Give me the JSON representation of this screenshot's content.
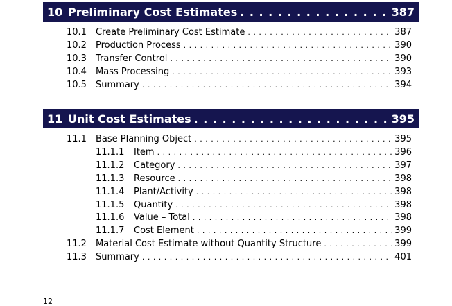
{
  "chapters": [
    {
      "number": "10",
      "title": "Preliminary Cost Estimates",
      "page": "387",
      "entries": [
        {
          "number": "10.1",
          "title": "Create Preliminary Cost Estimate",
          "page": "387"
        },
        {
          "number": "10.2",
          "title": "Production Process",
          "page": "390"
        },
        {
          "number": "10.3",
          "title": "Transfer Control",
          "page": "390"
        },
        {
          "number": "10.4",
          "title": "Mass Processing",
          "page": "393"
        },
        {
          "number": "10.5",
          "title": "Summary",
          "page": "394"
        }
      ]
    },
    {
      "number": "11",
      "title": "Unit Cost Estimates",
      "page": "395",
      "entries": [
        {
          "number": "11.1",
          "title": "Base Planning Object",
          "page": "395"
        },
        {
          "number": "11.1.1",
          "title": "Item",
          "page": "396"
        },
        {
          "number": "11.1.2",
          "title": "Category",
          "page": "397"
        },
        {
          "number": "11.1.3",
          "title": "Resource",
          "page": "398"
        },
        {
          "number": "11.1.4",
          "title": "Plant/Activity",
          "page": "398"
        },
        {
          "number": "11.1.5",
          "title": "Quantity",
          "page": "398"
        },
        {
          "number": "11.1.6",
          "title": "Value – Total",
          "page": "398"
        },
        {
          "number": "11.1.7",
          "title": "Cost Element",
          "page": "399"
        },
        {
          "number": "11.2",
          "title": "Material Cost Estimate without Quantity Structure",
          "page": "399"
        },
        {
          "number": "11.3",
          "title": "Summary",
          "page": "401"
        }
      ]
    }
  ],
  "footer": {
    "page_number": "12"
  },
  "colors": {
    "chapter_bar": "#15154f"
  }
}
